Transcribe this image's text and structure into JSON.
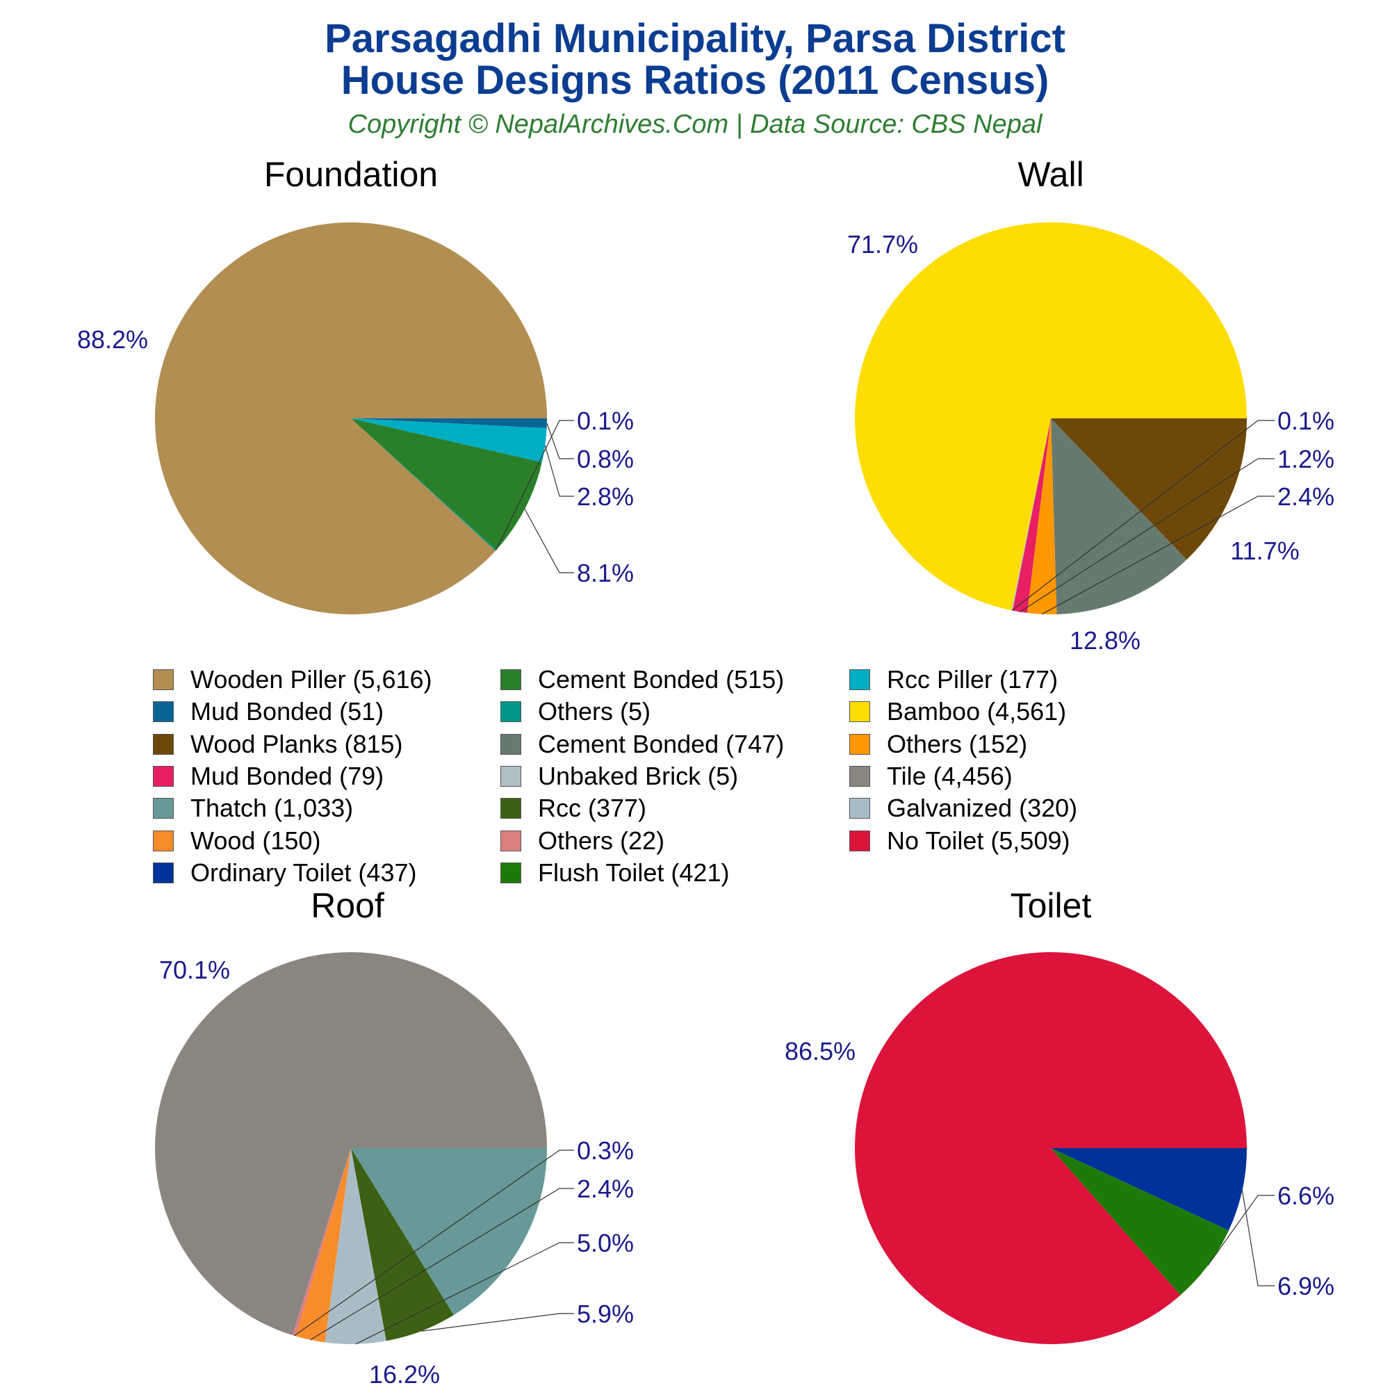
{
  "header": {
    "title_line1": "Parsagadhi Municipality, Parsa District",
    "title_line2": "House Designs Ratios (2011 Census)",
    "subtitle": "Copyright © NepalArchives.Com | Data Source: CBS Nepal"
  },
  "chart_data": [
    {
      "type": "pie",
      "title": "Foundation",
      "slices": [
        {
          "label": "Wooden Piller",
          "count": "5,616",
          "value": 88.2,
          "color": "#b28e52",
          "display": "88.2%"
        },
        {
          "label": "Mud Bonded",
          "count": "51",
          "value": 0.8,
          "color": "#0a6496",
          "display": "0.8%"
        },
        {
          "label": "Rcc Piller",
          "count": "177",
          "value": 2.8,
          "color": "#00aec4",
          "display": "2.8%"
        },
        {
          "label": "Cement Bonded",
          "count": "515",
          "value": 8.1,
          "color": "#2a7f2a",
          "display": "8.1%"
        },
        {
          "label": "Others",
          "count": "5",
          "value": 0.1,
          "color": "#009688",
          "display": "0.1%"
        }
      ]
    },
    {
      "type": "pie",
      "title": "Wall",
      "slices": [
        {
          "label": "Bamboo",
          "count": "4,561",
          "value": 71.7,
          "color": "#ffdd00",
          "display": "71.7%"
        },
        {
          "label": "Wood Planks",
          "count": "815",
          "value": 12.8,
          "color": "#6d4809",
          "display": "12.8%"
        },
        {
          "label": "Cement Bonded",
          "count": "747",
          "value": 11.7,
          "color": "#667a70",
          "display": "11.7%"
        },
        {
          "label": "Others",
          "count": "152",
          "value": 2.4,
          "color": "#ff9800",
          "display": "2.4%"
        },
        {
          "label": "Mud Bonded",
          "count": "79",
          "value": 1.2,
          "color": "#e91e63",
          "display": "1.2%"
        },
        {
          "label": "Unbaked Brick",
          "count": "5",
          "value": 0.1,
          "color": "#b0bec5",
          "display": "0.1%"
        }
      ]
    },
    {
      "type": "pie",
      "title": "Roof",
      "slices": [
        {
          "label": "Tile",
          "count": "4,456",
          "value": 70.1,
          "color": "#8b8580",
          "display": "70.1%"
        },
        {
          "label": "Thatch",
          "count": "1,033",
          "value": 16.2,
          "color": "#679999",
          "display": "16.2%"
        },
        {
          "label": "Rcc",
          "count": "377",
          "value": 5.9,
          "color": "#3d6114",
          "display": "5.9%"
        },
        {
          "label": "Galvanized",
          "count": "320",
          "value": 5.0,
          "color": "#a9bcc6",
          "display": "5.0%"
        },
        {
          "label": "Wood",
          "count": "150",
          "value": 2.4,
          "color": "#f98c2a",
          "display": "2.4%"
        },
        {
          "label": "Others",
          "count": "22",
          "value": 0.3,
          "color": "#d98080",
          "display": "0.3%"
        }
      ]
    },
    {
      "type": "pie",
      "title": "Toilet",
      "slices": [
        {
          "label": "No Toilet",
          "count": "5,509",
          "value": 86.5,
          "color": "#dc143c",
          "display": "86.5%"
        },
        {
          "label": "Ordinary Toilet",
          "count": "437",
          "value": 6.9,
          "color": "#003399",
          "display": "6.9%"
        },
        {
          "label": "Flush Toilet",
          "count": "421",
          "value": 6.6,
          "color": "#1e7a08",
          "display": "6.6%"
        }
      ]
    }
  ],
  "legend": {
    "columns": [
      [
        {
          "text": "Wooden Piller (5,616)",
          "color": "#b28e52"
        },
        {
          "text": "Mud Bonded (51)",
          "color": "#0a6496"
        },
        {
          "text": "Wood Planks (815)",
          "color": "#6d4809"
        },
        {
          "text": "Mud Bonded (79)",
          "color": "#e91e63"
        },
        {
          "text": "Thatch (1,033)",
          "color": "#679999"
        },
        {
          "text": "Wood (150)",
          "color": "#f98c2a"
        },
        {
          "text": "Ordinary Toilet (437)",
          "color": "#003399"
        }
      ],
      [
        {
          "text": "Cement Bonded (515)",
          "color": "#2a7f2a"
        },
        {
          "text": "Others (5)",
          "color": "#009688"
        },
        {
          "text": "Cement Bonded (747)",
          "color": "#667a70"
        },
        {
          "text": "Unbaked Brick (5)",
          "color": "#b0bec5"
        },
        {
          "text": "Rcc (377)",
          "color": "#3d6114"
        },
        {
          "text": "Others (22)",
          "color": "#d98080"
        },
        {
          "text": "Flush Toilet (421)",
          "color": "#1e7a08"
        }
      ],
      [
        {
          "text": "Rcc Piller (177)",
          "color": "#00aec4"
        },
        {
          "text": "Bamboo (4,561)",
          "color": "#ffdd00"
        },
        {
          "text": "Others (152)",
          "color": "#ff9800"
        },
        {
          "text": "Tile (4,456)",
          "color": "#8b8580"
        },
        {
          "text": "Galvanized (320)",
          "color": "#a9bcc6"
        },
        {
          "text": "No Toilet (5,509)",
          "color": "#dc143c"
        }
      ]
    ]
  }
}
